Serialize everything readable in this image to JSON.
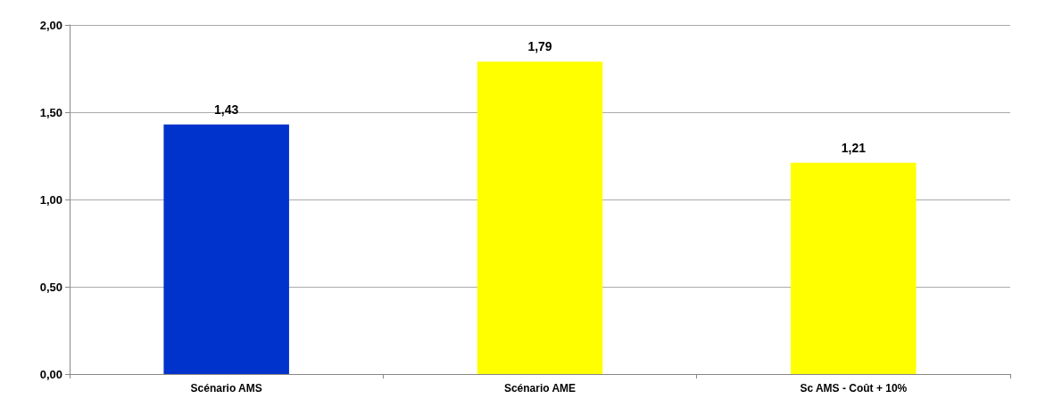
{
  "chart_data": {
    "type": "bar",
    "categories": [
      "Scénario AMS",
      "Scénario AME",
      "Sc AMS - Coût + 10%"
    ],
    "values": [
      1.43,
      1.79,
      1.21
    ],
    "colors": [
      "#0033cc",
      "#ffff00",
      "#ffff00"
    ],
    "value_labels": [
      "1,43",
      "1,79",
      "1,21"
    ],
    "ylim": [
      0,
      2
    ],
    "yticks": [
      {
        "value": 0,
        "label": "0,00"
      },
      {
        "value": 0.5,
        "label": "0,50"
      },
      {
        "value": 1,
        "label": "1,00"
      },
      {
        "value": 1.5,
        "label": "1,50"
      },
      {
        "value": 2,
        "label": "2,00"
      }
    ],
    "grid": "y"
  }
}
